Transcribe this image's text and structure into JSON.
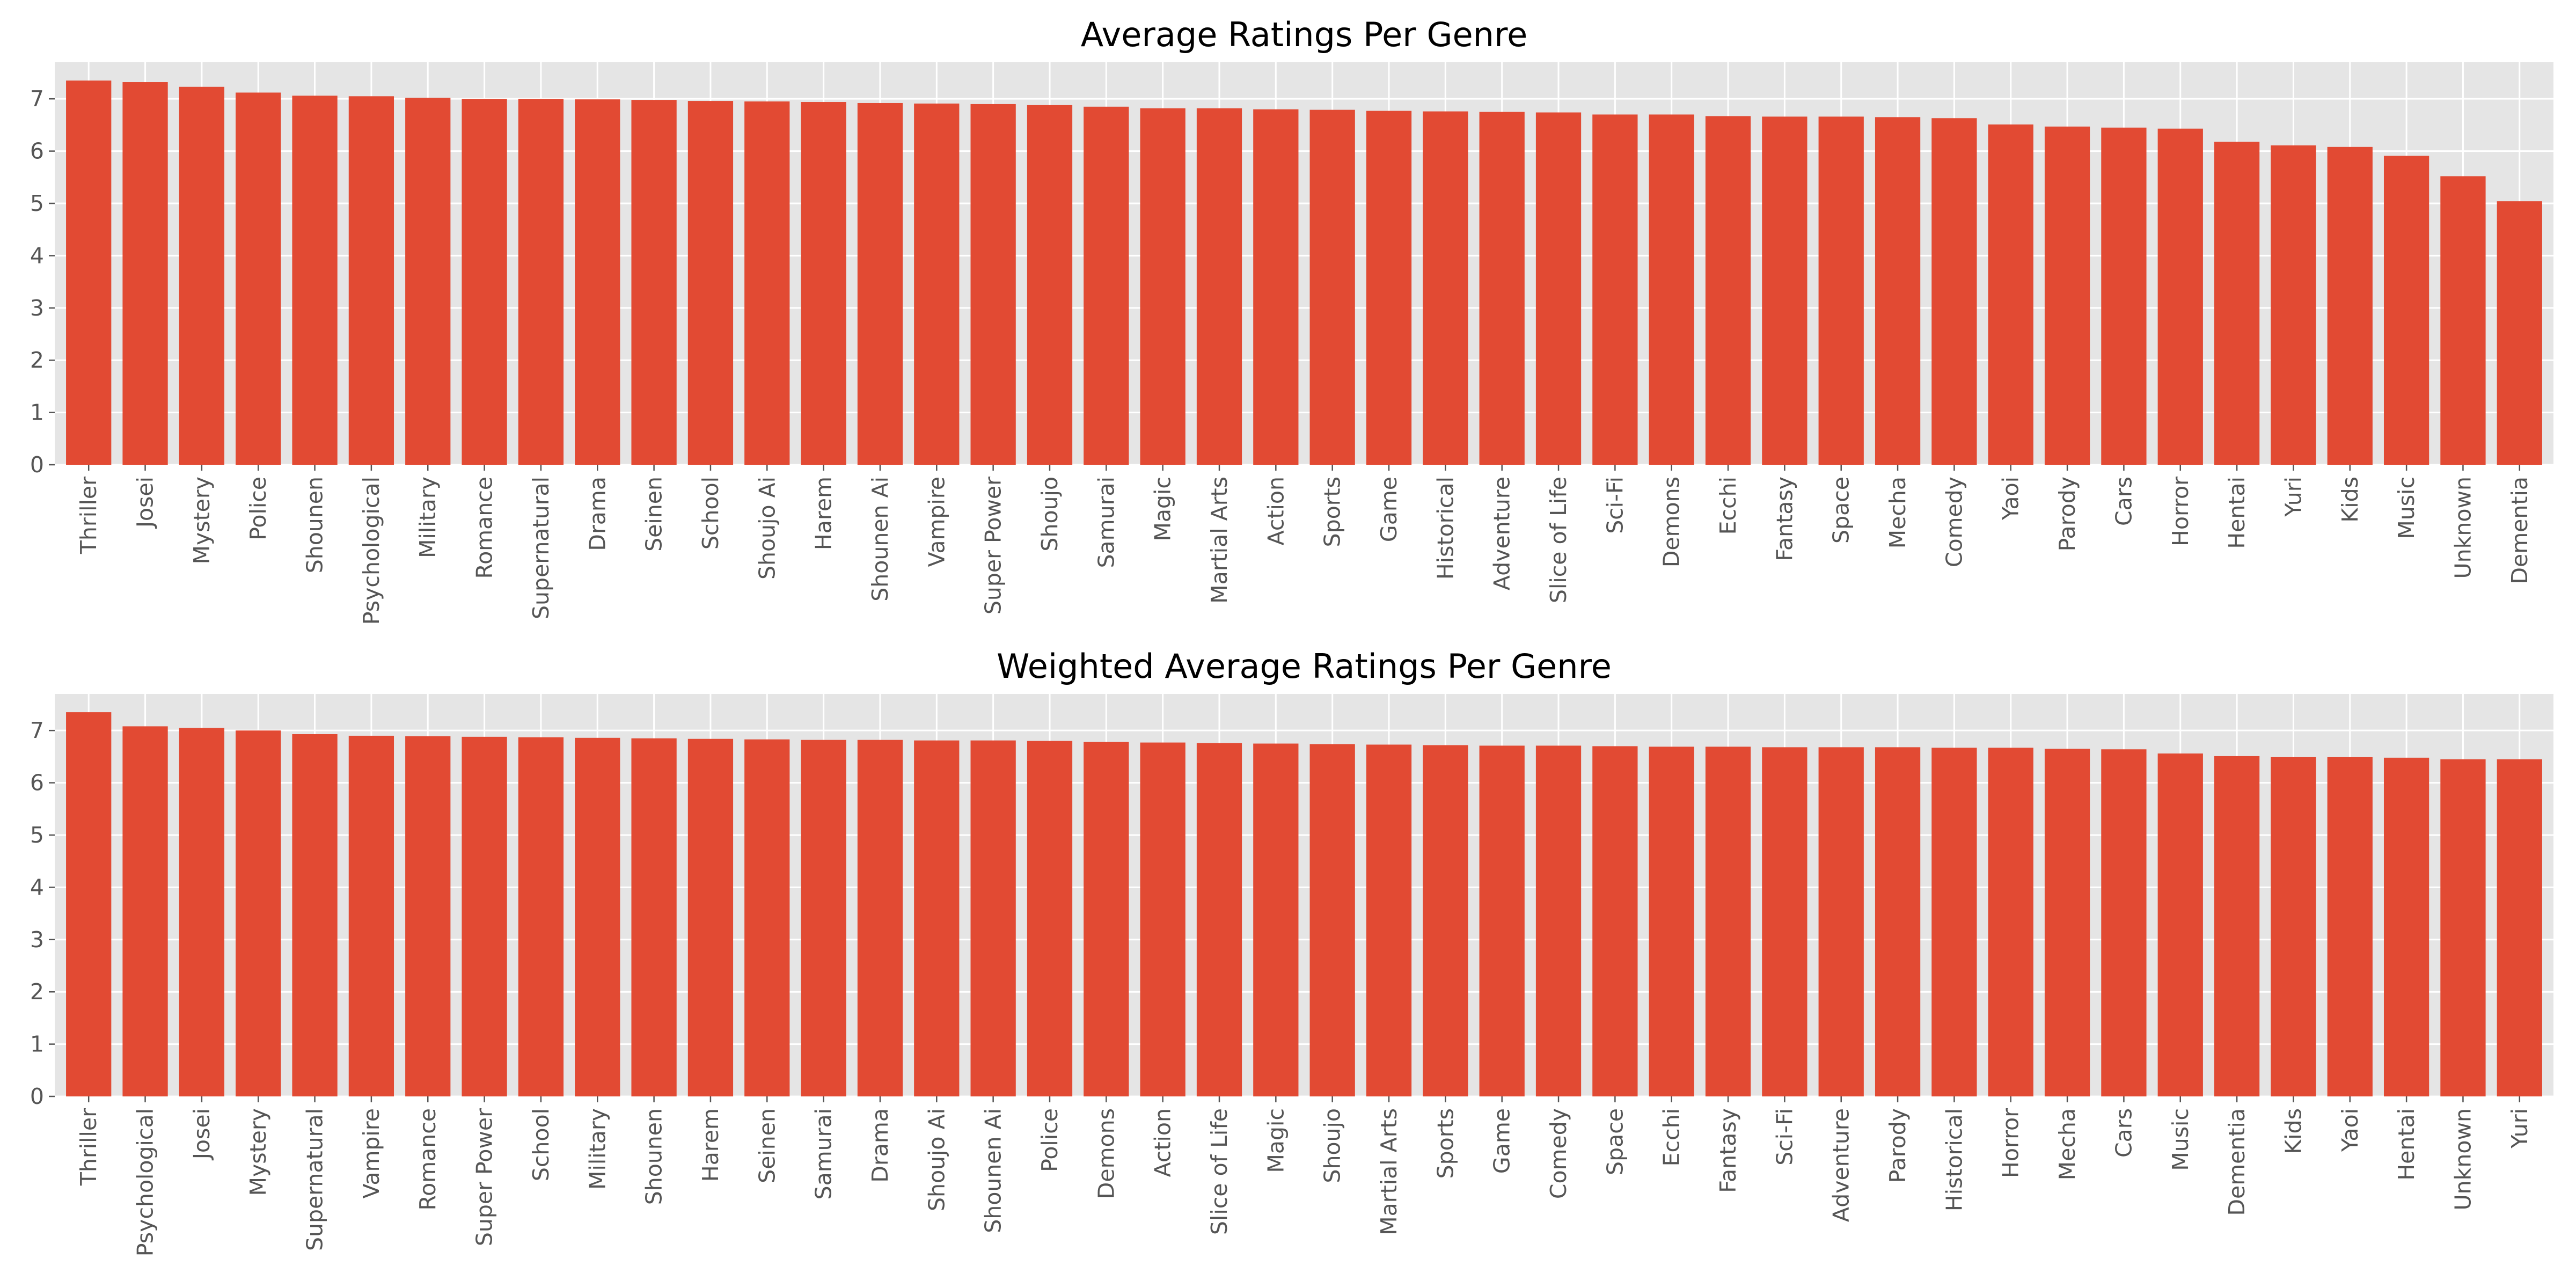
{
  "chart_data": [
    {
      "type": "bar",
      "title": "Average Ratings Per Genre",
      "xlabel": "",
      "ylabel": "",
      "ylim": [
        0,
        7.7
      ],
      "yticks": [
        0,
        1,
        2,
        3,
        4,
        5,
        6,
        7
      ],
      "grid": true,
      "bar_color": "#E24A33",
      "background_color": "#E5E5E5",
      "categories": [
        "Thriller",
        "Josei",
        "Mystery",
        "Police",
        "Shounen",
        "Psychological",
        "Military",
        "Romance",
        "Supernatural",
        "Drama",
        "Seinen",
        "School",
        "Shoujo Ai",
        "Harem",
        "Shounen Ai",
        "Vampire",
        "Super Power",
        "Shoujo",
        "Samurai",
        "Magic",
        "Martial Arts",
        "Action",
        "Sports",
        "Game",
        "Historical",
        "Adventure",
        "Slice of Life",
        "Sci-Fi",
        "Demons",
        "Ecchi",
        "Fantasy",
        "Space",
        "Mecha",
        "Comedy",
        "Yaoi",
        "Parody",
        "Cars",
        "Horror",
        "Hentai",
        "Yuri",
        "Kids",
        "Music",
        "Unknown",
        "Dementia"
      ],
      "values": [
        7.35,
        7.32,
        7.23,
        7.12,
        7.06,
        7.05,
        7.02,
        7.0,
        7.0,
        6.99,
        6.98,
        6.96,
        6.95,
        6.94,
        6.92,
        6.91,
        6.9,
        6.88,
        6.85,
        6.82,
        6.82,
        6.8,
        6.79,
        6.77,
        6.76,
        6.75,
        6.74,
        6.7,
        6.7,
        6.67,
        6.66,
        6.66,
        6.65,
        6.63,
        6.51,
        6.47,
        6.45,
        6.43,
        6.18,
        6.11,
        6.08,
        5.91,
        5.52,
        5.04
      ]
    },
    {
      "type": "bar",
      "title": "Weighted Average Ratings Per Genre",
      "xlabel": "",
      "ylabel": "",
      "ylim": [
        0,
        7.7
      ],
      "yticks": [
        0,
        1,
        2,
        3,
        4,
        5,
        6,
        7
      ],
      "grid": true,
      "bar_color": "#E24A33",
      "background_color": "#E5E5E5",
      "categories": [
        "Thriller",
        "Psychological",
        "Josei",
        "Mystery",
        "Supernatural",
        "Vampire",
        "Romance",
        "Super Power",
        "School",
        "Military",
        "Shounen",
        "Harem",
        "Seinen",
        "Samurai",
        "Drama",
        "Shoujo Ai",
        "Shounen Ai",
        "Police",
        "Demons",
        "Action",
        "Slice of Life",
        "Magic",
        "Shoujo",
        "Martial Arts",
        "Sports",
        "Game",
        "Comedy",
        "Space",
        "Ecchi",
        "Fantasy",
        "Sci-Fi",
        "Adventure",
        "Parody",
        "Historical",
        "Horror",
        "Mecha",
        "Cars",
        "Music",
        "Dementia",
        "Kids",
        "Yaoi",
        "Hentai",
        "Unknown",
        "Yuri"
      ],
      "values": [
        7.35,
        7.08,
        7.05,
        7.0,
        6.93,
        6.9,
        6.89,
        6.88,
        6.87,
        6.86,
        6.85,
        6.84,
        6.83,
        6.82,
        6.82,
        6.81,
        6.81,
        6.8,
        6.78,
        6.77,
        6.76,
        6.75,
        6.74,
        6.73,
        6.72,
        6.71,
        6.71,
        6.7,
        6.69,
        6.69,
        6.68,
        6.68,
        6.68,
        6.67,
        6.67,
        6.65,
        6.64,
        6.56,
        6.51,
        6.49,
        6.49,
        6.48,
        6.45,
        6.45
      ]
    }
  ]
}
